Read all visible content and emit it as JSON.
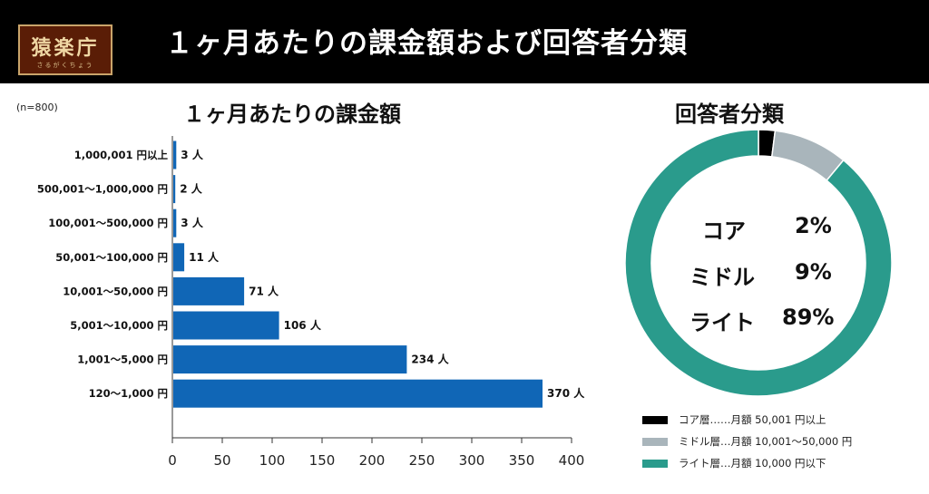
{
  "header": {
    "logo_text": "猿楽庁",
    "logo_sub": "さるがくちょう",
    "title": "１ヶ月あたりの課金額および回答者分類"
  },
  "sample_note": "(n=800)",
  "colors": {
    "bar": "#1066b6",
    "core": "#000000",
    "middle": "#a9b5bb",
    "light": "#2a9b8c"
  },
  "chart_data": [
    {
      "type": "bar",
      "orientation": "horizontal",
      "title": "１ヶ月あたりの課金額",
      "categories": [
        "1,000,001 円以上",
        "500,001～1,000,000 円",
        "100,001～500,000 円",
        "50,001～100,000 円",
        "10,001～50,000 円",
        "5,001～10,000 円",
        "1,001～5,000 円",
        "120～1,000 円"
      ],
      "values": [
        3,
        2,
        3,
        11,
        71,
        106,
        234,
        370
      ],
      "value_labels": [
        "3 人",
        "2 人",
        "3 人",
        "11 人",
        "71 人",
        "106 人",
        "234 人",
        "370 人"
      ],
      "xlim": [
        0,
        400
      ],
      "xticks": [
        0,
        50,
        100,
        150,
        200,
        250,
        300,
        350,
        400
      ],
      "xtick_labels": [
        "0",
        "50",
        "100",
        "150",
        "200",
        "250",
        "300",
        "350",
        "400"
      ],
      "grid": false
    },
    {
      "type": "pie",
      "subtype": "donut",
      "title": "回答者分類",
      "labels": [
        "コア",
        "ミドル",
        "ライト"
      ],
      "values": [
        2,
        9,
        89
      ],
      "value_labels": [
        "2%",
        "9%",
        "89%"
      ],
      "legend": [
        {
          "text": "コア層……月額 50,001 円以上",
          "color": "#000000"
        },
        {
          "text": "ミドル層…月額 10,001～50,000 円",
          "color": "#a9b5bb"
        },
        {
          "text": "ライト層…月額 10,000 円以下",
          "color": "#2a9b8c"
        }
      ],
      "legend_position": "bottom"
    }
  ]
}
